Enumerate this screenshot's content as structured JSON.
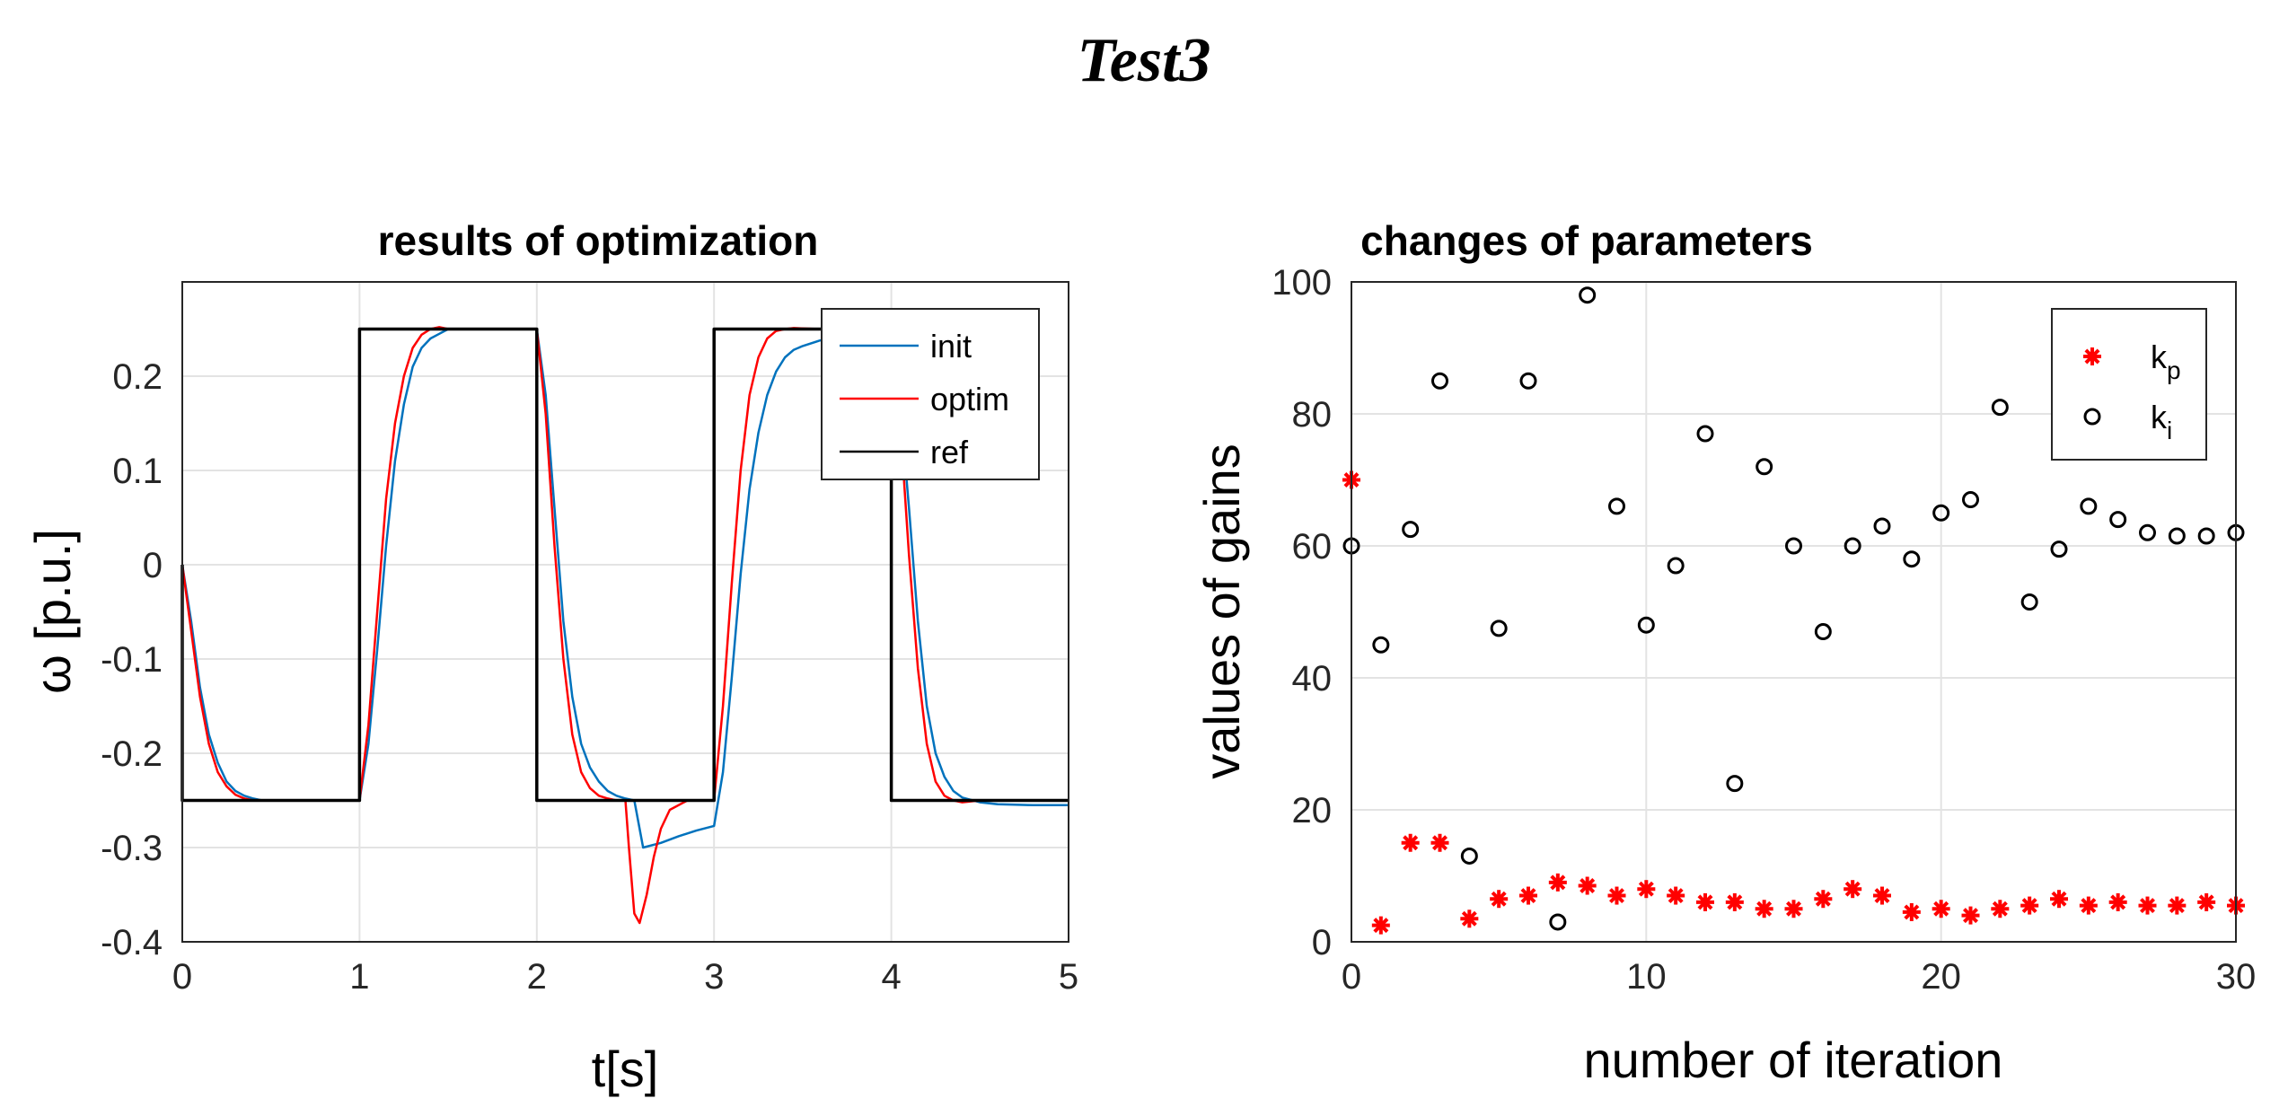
{
  "figure_title": "Test3",
  "chart_data": [
    {
      "type": "line",
      "title": "results of optimization",
      "xlabel": "t[s]",
      "ylabel": "ω [p.u.]",
      "xlim": [
        0,
        5
      ],
      "ylim": [
        -0.4,
        0.3
      ],
      "xticks": [
        "0",
        "1",
        "2",
        "3",
        "4",
        "5"
      ],
      "yticks": [
        "-0.4",
        "-0.3",
        "-0.2",
        "-0.1",
        "0",
        "0.1",
        "0.2"
      ],
      "grid": true,
      "legend_position": "top-right",
      "series": [
        {
          "name": "init",
          "color": "#0072BD",
          "x": [
            0,
            0.05,
            0.1,
            0.15,
            0.2,
            0.25,
            0.3,
            0.35,
            0.4,
            0.45,
            1.0,
            1.05,
            1.1,
            1.15,
            1.2,
            1.25,
            1.3,
            1.35,
            1.4,
            1.45,
            1.5,
            2.0,
            2.05,
            2.1,
            2.15,
            2.2,
            2.25,
            2.3,
            2.35,
            2.4,
            2.45,
            2.5,
            2.55,
            2.6,
            2.7,
            2.8,
            2.9,
            3.0,
            3.05,
            3.1,
            3.15,
            3.2,
            3.25,
            3.3,
            3.35,
            3.4,
            3.45,
            3.5,
            3.6,
            3.7,
            3.8,
            3.9,
            4.0,
            4.05,
            4.1,
            4.15,
            4.2,
            4.25,
            4.3,
            4.35,
            4.4,
            4.5,
            4.6,
            4.8,
            5.0
          ],
          "y": [
            0,
            -0.06,
            -0.13,
            -0.18,
            -0.21,
            -0.23,
            -0.24,
            -0.245,
            -0.248,
            -0.25,
            -0.25,
            -0.19,
            -0.09,
            0.02,
            0.11,
            0.17,
            0.21,
            0.23,
            0.24,
            0.245,
            0.25,
            0.25,
            0.18,
            0.06,
            -0.06,
            -0.14,
            -0.19,
            -0.215,
            -0.23,
            -0.24,
            -0.245,
            -0.248,
            -0.25,
            -0.3,
            -0.295,
            -0.288,
            -0.282,
            -0.277,
            -0.22,
            -0.12,
            -0.01,
            0.08,
            0.14,
            0.18,
            0.205,
            0.22,
            0.228,
            0.232,
            0.238,
            0.24,
            0.24,
            0.24,
            0.24,
            0.17,
            0.06,
            -0.06,
            -0.15,
            -0.2,
            -0.225,
            -0.24,
            -0.247,
            -0.252,
            -0.254,
            -0.255,
            -0.255
          ]
        },
        {
          "name": "optim",
          "color": "#FF0000",
          "x": [
            0,
            0.05,
            0.1,
            0.15,
            0.2,
            0.25,
            0.3,
            0.35,
            0.4,
            0.45,
            1.0,
            1.05,
            1.1,
            1.15,
            1.2,
            1.25,
            1.3,
            1.35,
            1.4,
            1.45,
            1.5,
            2.0,
            2.05,
            2.1,
            2.15,
            2.2,
            2.25,
            2.3,
            2.35,
            2.4,
            2.45,
            2.5,
            2.52,
            2.55,
            2.58,
            2.62,
            2.66,
            2.7,
            2.75,
            2.85,
            3.0,
            3.05,
            3.1,
            3.15,
            3.2,
            3.25,
            3.3,
            3.35,
            3.4,
            3.45,
            3.6,
            4.0,
            4.05,
            4.1,
            4.15,
            4.2,
            4.25,
            4.3,
            4.35,
            4.4,
            4.5,
            4.6,
            5.0
          ],
          "y": [
            0,
            -0.07,
            -0.14,
            -0.19,
            -0.22,
            -0.235,
            -0.244,
            -0.248,
            -0.25,
            -0.25,
            -0.25,
            -0.17,
            -0.05,
            0.07,
            0.15,
            0.2,
            0.23,
            0.244,
            0.25,
            0.252,
            0.25,
            0.25,
            0.16,
            0.02,
            -0.1,
            -0.18,
            -0.22,
            -0.237,
            -0.245,
            -0.248,
            -0.25,
            -0.25,
            -0.3,
            -0.37,
            -0.38,
            -0.35,
            -0.31,
            -0.28,
            -0.26,
            -0.25,
            -0.25,
            -0.15,
            -0.02,
            0.1,
            0.18,
            0.22,
            0.24,
            0.248,
            0.25,
            0.251,
            0.25,
            0.25,
            0.15,
            0.01,
            -0.11,
            -0.19,
            -0.23,
            -0.245,
            -0.25,
            -0.252,
            -0.25,
            -0.25,
            -0.25
          ]
        },
        {
          "name": "ref",
          "color": "#000000",
          "x": [
            0,
            0,
            1,
            1,
            2,
            2,
            3,
            3,
            4,
            4,
            5
          ],
          "y": [
            0,
            -0.25,
            -0.25,
            0.25,
            0.25,
            -0.25,
            -0.25,
            0.25,
            0.25,
            -0.25,
            -0.25
          ]
        }
      ]
    },
    {
      "type": "scatter",
      "title": "changes of parameters",
      "xlabel": "number of iteration",
      "ylabel": "values of gains",
      "xlim": [
        0,
        30
      ],
      "ylim": [
        0,
        100
      ],
      "xticks": [
        "0",
        "10",
        "20",
        "30"
      ],
      "yticks": [
        "0",
        "20",
        "40",
        "60",
        "80",
        "100"
      ],
      "grid": true,
      "legend_position": "top-right",
      "series": [
        {
          "name": "k",
          "subscript": "p",
          "marker": "asterisk",
          "color": "#FF0000",
          "x": [
            0,
            1,
            2,
            3,
            4,
            5,
            6,
            7,
            8,
            9,
            10,
            11,
            12,
            13,
            14,
            15,
            16,
            17,
            18,
            19,
            20,
            21,
            22,
            23,
            24,
            25,
            26,
            27,
            28,
            29,
            30
          ],
          "y": [
            70,
            2.5,
            15,
            15,
            3.5,
            6.5,
            7,
            9,
            8.5,
            7,
            8,
            7,
            6,
            6,
            5,
            5,
            6.5,
            8,
            7,
            4.5,
            5,
            4,
            5,
            5.5,
            6.5,
            5.5,
            6,
            5.5,
            5.5,
            6,
            5.5
          ]
        },
        {
          "name": "k",
          "subscript": "i",
          "marker": "circle",
          "color": "#000000",
          "x": [
            0,
            1,
            2,
            3,
            4,
            5,
            6,
            7,
            8,
            9,
            10,
            11,
            12,
            13,
            14,
            15,
            16,
            17,
            18,
            19,
            20,
            21,
            22,
            23,
            24,
            25,
            26,
            27,
            28,
            29,
            30
          ],
          "y": [
            60,
            45,
            62.5,
            85,
            13,
            47.5,
            85,
            3,
            98,
            66,
            48,
            57,
            77,
            24,
            72,
            60,
            47,
            60,
            63,
            58,
            65,
            67,
            81,
            51.5,
            59.5,
            66,
            64,
            62,
            61.5,
            61.5,
            62
          ]
        }
      ]
    }
  ]
}
